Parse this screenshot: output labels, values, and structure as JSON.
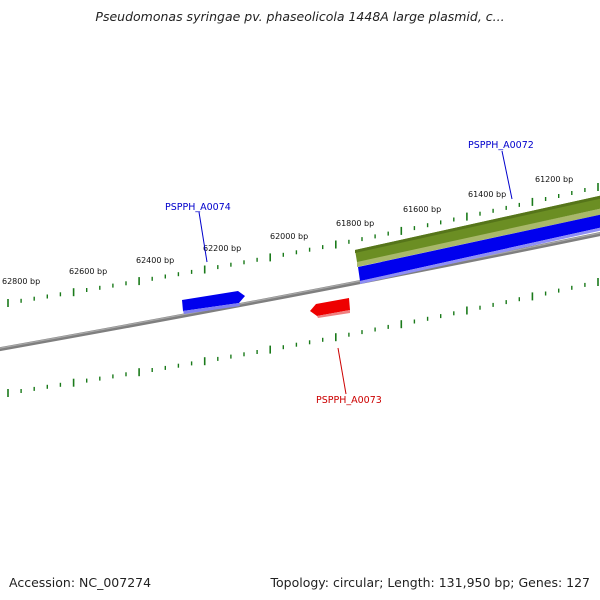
{
  "title": "Pseudomonas syringae pv. phaseolicola 1448A large plasmid, c...",
  "footer": {
    "accession": "Accession: NC_007274",
    "summary": "Topology: circular; Length: 131,950 bp; Genes: 127"
  },
  "scale_labels": [
    {
      "text": "61200 bp"
    },
    {
      "text": "61400 bp"
    },
    {
      "text": "61600 bp"
    },
    {
      "text": "61800 bp"
    },
    {
      "text": "62000 bp"
    },
    {
      "text": "62200 bp"
    },
    {
      "text": "62400 bp"
    },
    {
      "text": "62600 bp"
    },
    {
      "text": "62800 bp"
    }
  ],
  "genes": [
    {
      "name": "PSPPH_A0072",
      "color": "#0000cc"
    },
    {
      "name": "PSPPH_A0073",
      "color": "#cc0000"
    },
    {
      "name": "PSPPH_A0074",
      "color": "#0000cc"
    }
  ],
  "colors": {
    "backbone": "#7f7f7f",
    "tick": "#1a7a1a",
    "gc_band": "#6b8e23",
    "cds_forward": "#0000ee",
    "cds_reverse": "#ee0000"
  }
}
